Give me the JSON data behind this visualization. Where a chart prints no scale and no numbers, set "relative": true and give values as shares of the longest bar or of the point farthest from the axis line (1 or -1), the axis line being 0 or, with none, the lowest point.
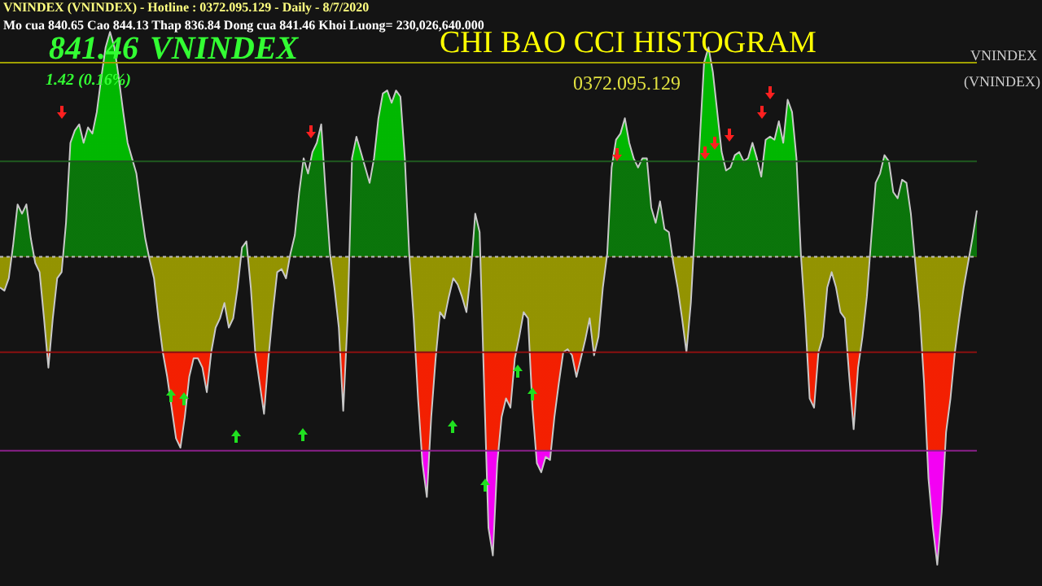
{
  "chart_data": {
    "type": "area",
    "relative": true,
    "title": "CHI BAO CCI HISTOGRAM",
    "subtitle": "0372.095.129",
    "annotations": [
      "VNINDEX (VNINDEX) - Hotline : 0372.095.129 - Daily - 8/7/2020",
      "Mo cua 840.65  Cao 844.13  Thap 836.84  Dong cua 841.46  Khoi Luong= 230,026,640.000",
      "841.46",
      "VNINDEX",
      "1.42 (0.16%)",
      "VNINDEX",
      "(VNINDEX)"
    ],
    "categories": [
      null,
      null,
      null,
      null,
      null,
      null,
      null,
      null,
      null,
      null,
      null,
      null,
      null,
      null,
      null,
      null,
      null,
      null,
      null,
      null,
      null,
      null,
      null,
      null,
      null,
      null,
      null,
      null,
      null,
      null,
      null,
      null,
      null,
      null,
      null,
      null,
      null,
      null,
      null,
      null,
      null,
      null,
      null,
      null,
      null,
      null,
      null,
      null,
      null,
      null,
      null,
      null,
      null,
      null,
      null,
      null,
      null,
      null,
      null,
      null,
      null,
      null,
      null,
      null,
      null,
      null,
      null,
      null,
      null,
      null,
      null,
      null,
      null,
      null,
      null,
      null,
      null,
      null,
      null,
      null,
      null,
      null,
      null,
      null,
      null,
      null,
      null,
      null,
      null,
      null,
      null,
      null,
      null,
      null,
      null,
      null,
      null,
      null,
      null,
      null,
      null,
      null,
      null,
      null,
      null,
      null,
      null,
      null,
      null,
      null,
      null,
      null,
      null,
      null,
      null,
      null,
      null,
      null,
      null,
      null,
      null,
      null,
      null,
      null,
      null,
      null,
      null,
      null,
      null,
      null,
      null,
      null,
      null,
      null,
      null,
      null,
      null,
      null,
      null,
      null,
      null,
      null,
      null,
      null,
      null,
      null,
      null,
      null,
      null,
      null,
      null,
      null,
      null,
      null,
      null,
      null,
      null,
      null,
      null,
      null,
      null,
      null,
      null,
      null,
      null,
      null,
      null,
      null,
      null,
      null,
      null,
      null,
      null,
      null,
      null,
      null,
      null,
      null,
      null,
      null,
      null,
      null,
      null,
      null,
      null,
      null,
      null,
      null,
      null,
      null,
      null,
      null,
      null,
      null,
      null,
      null,
      null,
      null,
      null,
      null,
      null,
      null,
      null,
      null,
      null,
      null,
      null,
      null,
      null,
      null,
      null,
      null,
      null,
      null,
      null,
      null,
      null,
      null,
      null,
      null,
      null,
      null,
      null
    ],
    "color": "#c8c8c8",
    "values": [
      -0.1,
      -0.11,
      -0.07,
      0.04,
      0.17,
      0.14,
      0.17,
      0.06,
      -0.02,
      -0.05,
      -0.2,
      -0.36,
      -0.2,
      -0.07,
      -0.05,
      0.11,
      0.37,
      0.41,
      0.43,
      0.37,
      0.42,
      0.4,
      0.47,
      0.58,
      0.68,
      0.73,
      0.68,
      0.58,
      0.47,
      0.37,
      0.32,
      0.27,
      0.16,
      0.06,
      -0.01,
      -0.07,
      -0.2,
      -0.31,
      -0.39,
      -0.49,
      -0.59,
      -0.62,
      -0.52,
      -0.39,
      -0.33,
      -0.33,
      -0.36,
      -0.44,
      -0.31,
      -0.23,
      -0.2,
      -0.15,
      -0.23,
      -0.2,
      -0.1,
      0.03,
      0.05,
      -0.1,
      -0.31,
      -0.41,
      -0.51,
      -0.33,
      -0.18,
      -0.05,
      -0.04,
      -0.07,
      0.01,
      0.07,
      0.21,
      0.32,
      0.27,
      0.34,
      0.37,
      0.43,
      0.21,
      0.01,
      -0.1,
      -0.23,
      -0.5,
      -0.2,
      0.32,
      0.39,
      0.34,
      0.29,
      0.24,
      0.32,
      0.45,
      0.53,
      0.54,
      0.5,
      0.54,
      0.52,
      0.32,
      0.01,
      -0.2,
      -0.46,
      -0.67,
      -0.78,
      -0.52,
      -0.33,
      -0.18,
      -0.2,
      -0.13,
      -0.07,
      -0.09,
      -0.13,
      -0.18,
      -0.05,
      0.14,
      0.08,
      -0.41,
      -0.88,
      -0.97,
      -0.67,
      -0.52,
      -0.46,
      -0.49,
      -0.33,
      -0.26,
      -0.18,
      -0.2,
      -0.49,
      -0.67,
      -0.7,
      -0.65,
      -0.66,
      -0.52,
      -0.41,
      -0.31,
      -0.3,
      -0.32,
      -0.39,
      -0.33,
      -0.27,
      -0.2,
      -0.32,
      -0.26,
      -0.1,
      0.01,
      0.29,
      0.38,
      0.4,
      0.45,
      0.37,
      0.32,
      0.29,
      0.32,
      0.32,
      0.16,
      0.11,
      0.18,
      0.09,
      0.08,
      -0.02,
      -0.1,
      -0.2,
      -0.31,
      -0.15,
      0.11,
      0.37,
      0.63,
      0.68,
      0.6,
      0.47,
      0.34,
      0.28,
      0.29,
      0.33,
      0.34,
      0.31,
      0.32,
      0.37,
      0.32,
      0.26,
      0.38,
      0.39,
      0.38,
      0.44,
      0.37,
      0.51,
      0.47,
      0.32,
      0.01,
      -0.2,
      -0.46,
      -0.49,
      -0.31,
      -0.26,
      -0.1,
      -0.05,
      -0.1,
      -0.18,
      -0.2,
      -0.39,
      -0.56,
      -0.36,
      -0.26,
      -0.13,
      0.06,
      0.24,
      0.27,
      0.33,
      0.31,
      0.21,
      0.19,
      0.25,
      0.24,
      0.14,
      -0.02,
      -0.18,
      -0.41,
      -0.72,
      -0.88,
      -1,
      -0.83,
      -0.57,
      -0.46,
      -0.31,
      -0.2,
      -0.1,
      -0.02,
      0.06,
      0.15
    ],
    "ref_lines": [
      {
        "axis": "y",
        "value": 0.63,
        "color": "#a0a000"
      },
      {
        "axis": "y",
        "value": 0.31,
        "color": "#1f5a1f"
      },
      {
        "axis": "y",
        "value": 0,
        "color": "#bbbbbb",
        "line_style": "dotted"
      },
      {
        "axis": "y",
        "value": -0.31,
        "color": "#8a1010"
      },
      {
        "axis": "y",
        "value": -0.63,
        "color": "#8a208a"
      }
    ]
  }
}
